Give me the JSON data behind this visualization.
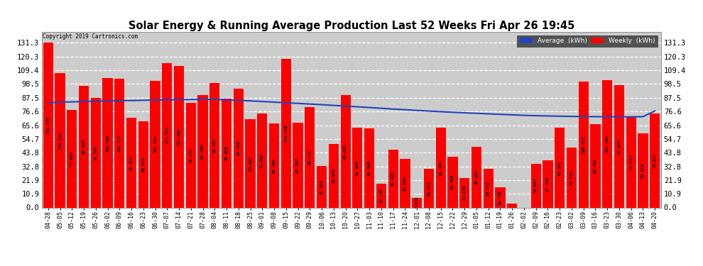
{
  "title": "Solar Energy & Running Average Production Last 52 Weeks Fri Apr 26 19:45",
  "copyright": "Copyright 2019 Cartronics.com",
  "bar_color": "#ff0000",
  "avg_line_color": "#2244bb",
  "background_color": "#ffffff",
  "plot_bg_color": "#cccccc",
  "grid_color": "#ffffff",
  "categories": [
    "04-28",
    "05-05",
    "05-12",
    "05-19",
    "05-26",
    "06-02",
    "06-09",
    "06-16",
    "06-23",
    "06-30",
    "07-07",
    "07-14",
    "07-21",
    "07-28",
    "08-04",
    "08-11",
    "08-18",
    "08-25",
    "09-01",
    "09-08",
    "09-15",
    "09-22",
    "09-29",
    "10-06",
    "10-13",
    "10-20",
    "10-27",
    "11-03",
    "11-10",
    "11-17",
    "11-24",
    "12-01",
    "12-08",
    "12-15",
    "12-22",
    "12-29",
    "01-05",
    "01-12",
    "01-19",
    "01-26",
    "02-02",
    "02-09",
    "02-16",
    "02-23",
    "03-02",
    "03-09",
    "03-16",
    "03-23",
    "03-30",
    "04-06",
    "04-13",
    "04-20"
  ],
  "weekly_values": [
    131.28,
    107.136,
    77.864,
    96.832,
    87.192,
    102.968,
    102.512,
    71.432,
    68.976,
    101.104,
    115.224,
    112.864,
    83.712,
    89.76,
    99.204,
    86.668,
    94.496,
    70.692,
    74.956,
    67.008,
    118.256,
    67.856,
    80.272,
    33.1,
    50.56,
    89.412,
    63.808,
    62.956,
    19.148,
    46.104,
    38.924,
    7.84,
    31.072,
    63.584,
    40.408,
    23.2,
    48.16,
    30.912,
    16.128,
    3.012,
    0.0,
    34.944,
    37.796,
    63.552,
    47.776,
    100.272,
    66.208,
    101.78,
    97.632,
    72.224,
    59.22,
    74.912
  ],
  "avg_values": [
    83.5,
    84.0,
    84.2,
    84.5,
    84.7,
    84.9,
    85.2,
    85.3,
    85.5,
    85.7,
    85.9,
    86.0,
    86.1,
    86.2,
    86.2,
    85.8,
    85.4,
    85.0,
    84.5,
    84.0,
    83.5,
    83.0,
    82.5,
    82.0,
    81.4,
    80.9,
    80.3,
    79.7,
    79.1,
    78.5,
    78.0,
    77.4,
    76.9,
    76.4,
    75.9,
    75.5,
    75.1,
    74.7,
    74.3,
    73.9,
    73.5,
    73.2,
    73.0,
    72.8,
    72.6,
    72.5,
    72.4,
    72.3,
    72.3,
    72.3,
    72.4,
    77.0
  ],
  "yticks": [
    0.0,
    10.9,
    21.9,
    32.8,
    43.8,
    54.7,
    65.6,
    76.6,
    87.5,
    98.5,
    109.4,
    120.3,
    131.3
  ],
  "legend_avg_bg": "#2244bb",
  "legend_weekly_bg": "#ff0000",
  "figsize": [
    9.9,
    3.75
  ],
  "dpi": 100
}
